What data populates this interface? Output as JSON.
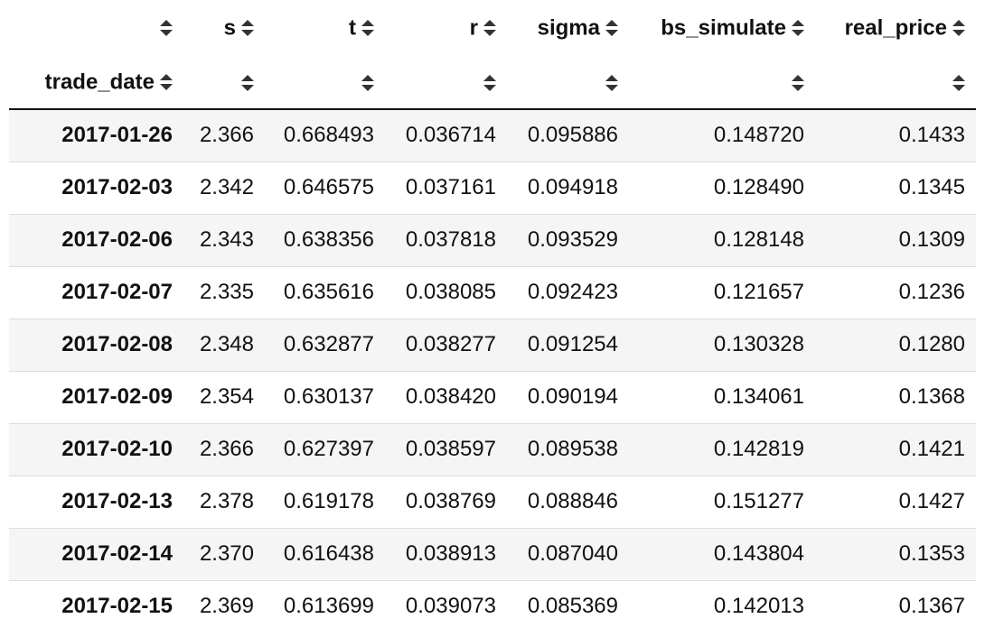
{
  "table": {
    "columns": [
      {
        "name": "",
        "index_label": "trade_date"
      },
      {
        "name": "s"
      },
      {
        "name": "t"
      },
      {
        "name": "r"
      },
      {
        "name": "sigma"
      },
      {
        "name": "bs_simulate"
      },
      {
        "name": "real_price"
      }
    ],
    "rows": [
      {
        "trade_date": "2017-01-26",
        "s": "2.366",
        "t": "0.668493",
        "r": "0.036714",
        "sigma": "0.095886",
        "bs_simulate": "0.148720",
        "real_price": "0.1433"
      },
      {
        "trade_date": "2017-02-03",
        "s": "2.342",
        "t": "0.646575",
        "r": "0.037161",
        "sigma": "0.094918",
        "bs_simulate": "0.128490",
        "real_price": "0.1345"
      },
      {
        "trade_date": "2017-02-06",
        "s": "2.343",
        "t": "0.638356",
        "r": "0.037818",
        "sigma": "0.093529",
        "bs_simulate": "0.128148",
        "real_price": "0.1309"
      },
      {
        "trade_date": "2017-02-07",
        "s": "2.335",
        "t": "0.635616",
        "r": "0.038085",
        "sigma": "0.092423",
        "bs_simulate": "0.121657",
        "real_price": "0.1236"
      },
      {
        "trade_date": "2017-02-08",
        "s": "2.348",
        "t": "0.632877",
        "r": "0.038277",
        "sigma": "0.091254",
        "bs_simulate": "0.130328",
        "real_price": "0.1280"
      },
      {
        "trade_date": "2017-02-09",
        "s": "2.354",
        "t": "0.630137",
        "r": "0.038420",
        "sigma": "0.090194",
        "bs_simulate": "0.134061",
        "real_price": "0.1368"
      },
      {
        "trade_date": "2017-02-10",
        "s": "2.366",
        "t": "0.627397",
        "r": "0.038597",
        "sigma": "0.089538",
        "bs_simulate": "0.142819",
        "real_price": "0.1421"
      },
      {
        "trade_date": "2017-02-13",
        "s": "2.378",
        "t": "0.619178",
        "r": "0.038769",
        "sigma": "0.088846",
        "bs_simulate": "0.151277",
        "real_price": "0.1427"
      },
      {
        "trade_date": "2017-02-14",
        "s": "2.370",
        "t": "0.616438",
        "r": "0.038913",
        "sigma": "0.087040",
        "bs_simulate": "0.143804",
        "real_price": "0.1353"
      },
      {
        "trade_date": "2017-02-15",
        "s": "2.369",
        "t": "0.613699",
        "r": "0.039073",
        "sigma": "0.085369",
        "bs_simulate": "0.142013",
        "real_price": "0.1367"
      }
    ]
  },
  "icons": {
    "sort": "sort-icon"
  }
}
